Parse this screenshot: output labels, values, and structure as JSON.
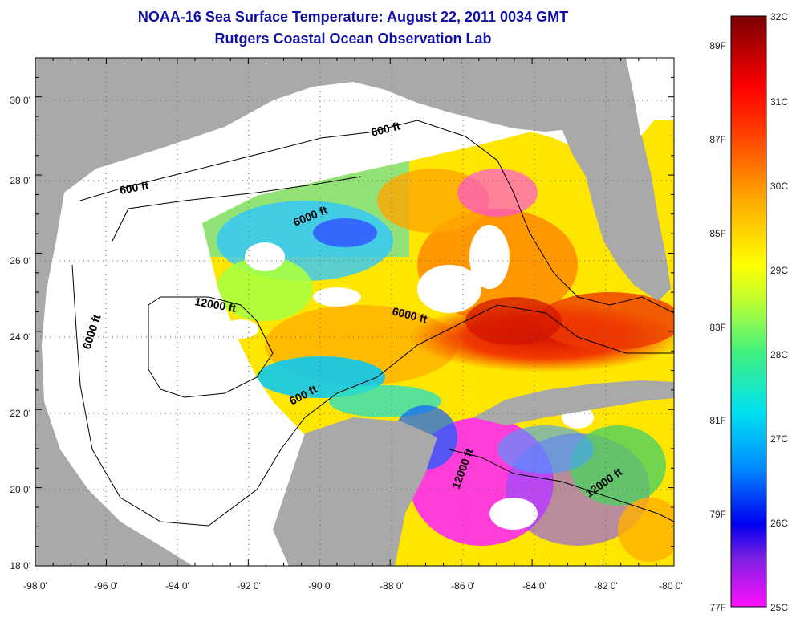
{
  "title": {
    "line1": "NOAA-16 Sea Surface Temperature:  August 22, 2011 0034 GMT",
    "line2": "Rutgers Coastal Ocean Observation Lab"
  },
  "colors": {
    "land": "#a9a9a9",
    "water_no_data": "#ffffff",
    "title": "#1010a8"
  },
  "axes": {
    "x_ticks": [
      "-98 0'",
      "-96 0'",
      "-94 0'",
      "-92 0'",
      "-90 0'",
      "-88 0'",
      "-86 0'",
      "-84 0'",
      "-82 0'",
      "-80 0'"
    ],
    "y_ticks": [
      "18 0'",
      "20 0'",
      "22 0'",
      "24 0'",
      "26 0'",
      "28 0'",
      "30 0'"
    ],
    "x_range": [
      -98,
      -80
    ],
    "y_range": [
      18,
      31
    ]
  },
  "contour_labels": [
    "600 ft",
    "600 ft",
    "6000 ft",
    "12000 ft",
    "6000 ft",
    "6000 ft",
    "600 ft",
    "12000 ft",
    "12000 ft"
  ],
  "colorbar": {
    "stops": [
      "#ff10ff",
      "#8020e0",
      "#0000f0",
      "#0090ff",
      "#00e0f0",
      "#40f080",
      "#c0ff30",
      "#ffff00",
      "#ffa000",
      "#ff4000",
      "#ff0000",
      "#b00000",
      "#780000"
    ],
    "celsius_labels": [
      "32C",
      "31C",
      "30C",
      "29C",
      "28C",
      "27C",
      "26C",
      "25C"
    ],
    "fahrenheit_labels": [
      "89F",
      "87F",
      "85F",
      "83F",
      "81F",
      "79F",
      "77F"
    ]
  }
}
